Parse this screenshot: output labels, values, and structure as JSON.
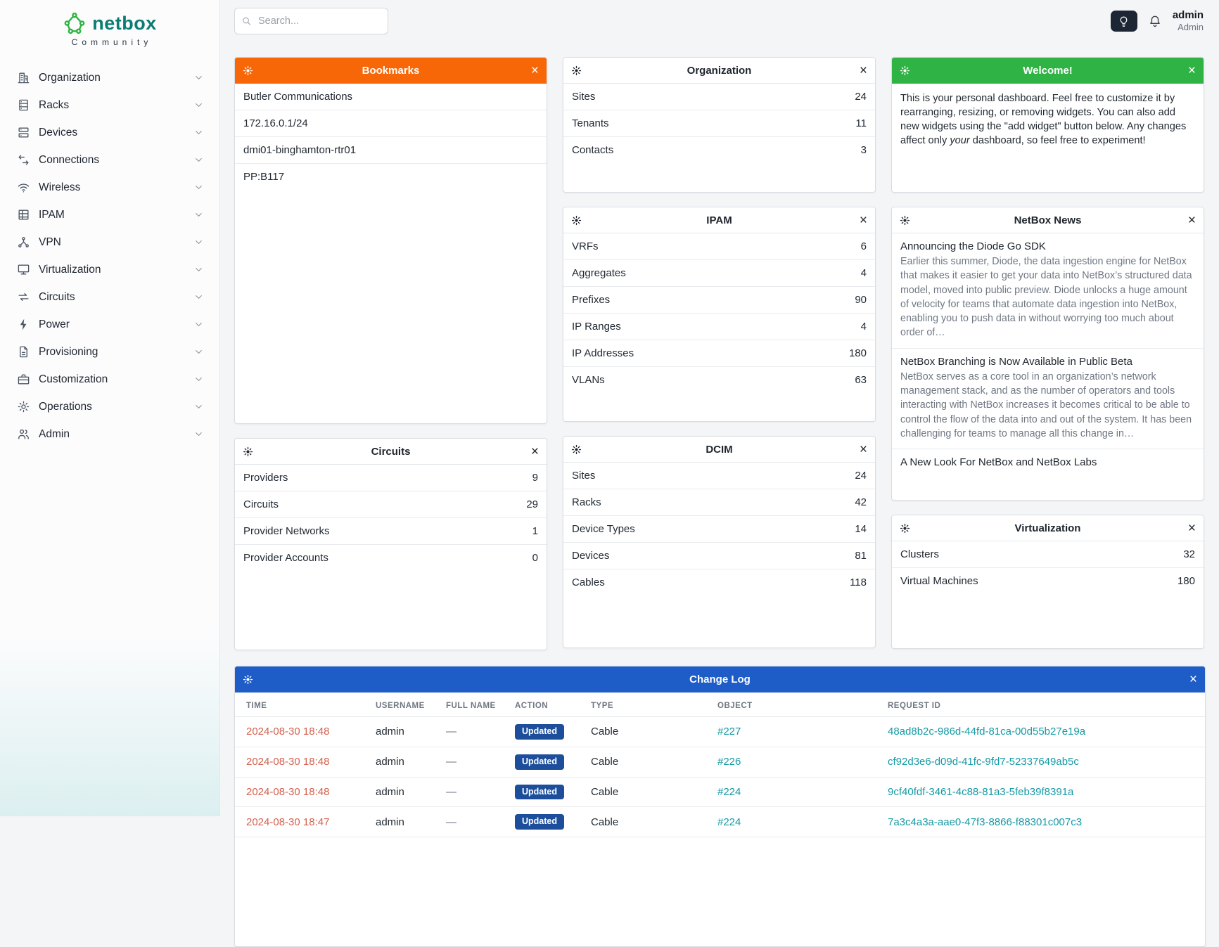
{
  "brand": {
    "name": "netbox",
    "subtitle": "Community"
  },
  "topbar": {
    "search_placeholder": "Search...",
    "user_name": "admin",
    "user_role": "Admin"
  },
  "colors": {
    "bookmarks_header": "#f76707",
    "welcome_header": "#2fb344",
    "changelog_header": "#1e5cc8",
    "badge_blue": "#1d4e9b",
    "link_red": "#d4614e",
    "link_teal": "#149aa5",
    "brand_teal": "#0a7c74",
    "brand_green": "#2fb344"
  },
  "sidebar": {
    "items": [
      {
        "label": "Organization",
        "icon": "building-icon"
      },
      {
        "label": "Racks",
        "icon": "rack-icon"
      },
      {
        "label": "Devices",
        "icon": "devices-icon"
      },
      {
        "label": "Connections",
        "icon": "connections-icon"
      },
      {
        "label": "Wireless",
        "icon": "wireless-icon"
      },
      {
        "label": "IPAM",
        "icon": "ipam-icon"
      },
      {
        "label": "VPN",
        "icon": "vpn-icon"
      },
      {
        "label": "Virtualization",
        "icon": "virtualization-icon"
      },
      {
        "label": "Circuits",
        "icon": "circuits-icon"
      },
      {
        "label": "Power",
        "icon": "power-icon"
      },
      {
        "label": "Provisioning",
        "icon": "provisioning-icon"
      },
      {
        "label": "Customization",
        "icon": "customization-icon"
      },
      {
        "label": "Operations",
        "icon": "operations-icon"
      },
      {
        "label": "Admin",
        "icon": "admin-icon"
      }
    ]
  },
  "widgets": {
    "bookmarks": {
      "title": "Bookmarks",
      "items": [
        "Butler Communications",
        "172.16.0.1/24",
        "dmi01-binghamton-rtr01",
        "PP:B117"
      ]
    },
    "organization": {
      "title": "Organization",
      "rows": [
        [
          "Sites",
          "24"
        ],
        [
          "Tenants",
          "11"
        ],
        [
          "Contacts",
          "3"
        ]
      ]
    },
    "welcome": {
      "title": "Welcome!",
      "body_pre": "This is your personal dashboard. Feel free to customize it by rearranging, resizing, or removing widgets. You can also add new widgets using the \"add widget\" button below. Any changes affect only ",
      "body_italic": "your",
      "body_post": " dashboard, so feel free to experiment!"
    },
    "ipam": {
      "title": "IPAM",
      "rows": [
        [
          "VRFs",
          "6"
        ],
        [
          "Aggregates",
          "4"
        ],
        [
          "Prefixes",
          "90"
        ],
        [
          "IP Ranges",
          "4"
        ],
        [
          "IP Addresses",
          "180"
        ],
        [
          "VLANs",
          "63"
        ]
      ]
    },
    "news": {
      "title": "NetBox News",
      "articles": [
        {
          "title": "Announcing the Diode Go SDK",
          "body": "Earlier this summer, Diode, the data ingestion engine for NetBox that makes it easier to get your data into NetBox’s structured data model, moved into public preview. Diode unlocks a huge amount of velocity for teams that automate data ingestion into NetBox, enabling you to push data in without worrying too much about order of…"
        },
        {
          "title": "NetBox Branching is Now Available in Public Beta",
          "body": "NetBox serves as a core tool in an organization’s network management stack, and as the number of operators and tools interacting with NetBox increases it becomes critical to be able to control the flow of the data into and out of the system. It has been challenging for teams to manage all this change in…"
        },
        {
          "title": "A New Look For NetBox and NetBox Labs",
          "body": ""
        }
      ]
    },
    "circuits": {
      "title": "Circuits",
      "rows": [
        [
          "Providers",
          "9"
        ],
        [
          "Circuits",
          "29"
        ],
        [
          "Provider Networks",
          "1"
        ],
        [
          "Provider Accounts",
          "0"
        ]
      ]
    },
    "dcim": {
      "title": "DCIM",
      "rows": [
        [
          "Sites",
          "24"
        ],
        [
          "Racks",
          "42"
        ],
        [
          "Device Types",
          "14"
        ],
        [
          "Devices",
          "81"
        ],
        [
          "Cables",
          "118"
        ]
      ]
    },
    "virtualization": {
      "title": "Virtualization",
      "rows": [
        [
          "Clusters",
          "32"
        ],
        [
          "Virtual Machines",
          "180"
        ]
      ]
    },
    "changelog": {
      "title": "Change Log",
      "columns": [
        "TIME",
        "USERNAME",
        "FULL NAME",
        "ACTION",
        "TYPE",
        "OBJECT",
        "REQUEST ID"
      ],
      "rows": [
        {
          "time": "2024-08-30 18:48",
          "username": "admin",
          "full_name": "—",
          "action": "Updated",
          "type": "Cable",
          "object": "#227",
          "request_id": "48ad8b2c-986d-44fd-81ca-00d55b27e19a"
        },
        {
          "time": "2024-08-30 18:48",
          "username": "admin",
          "full_name": "—",
          "action": "Updated",
          "type": "Cable",
          "object": "#226",
          "request_id": "cf92d3e6-d09d-41fc-9fd7-52337649ab5c"
        },
        {
          "time": "2024-08-30 18:48",
          "username": "admin",
          "full_name": "—",
          "action": "Updated",
          "type": "Cable",
          "object": "#224",
          "request_id": "9cf40fdf-3461-4c88-81a3-5feb39f8391a"
        },
        {
          "time": "2024-08-30 18:47",
          "username": "admin",
          "full_name": "—",
          "action": "Updated",
          "type": "Cable",
          "object": "#224",
          "request_id": "7a3c4a3a-aae0-47f3-8866-f88301c007c3"
        }
      ]
    }
  }
}
